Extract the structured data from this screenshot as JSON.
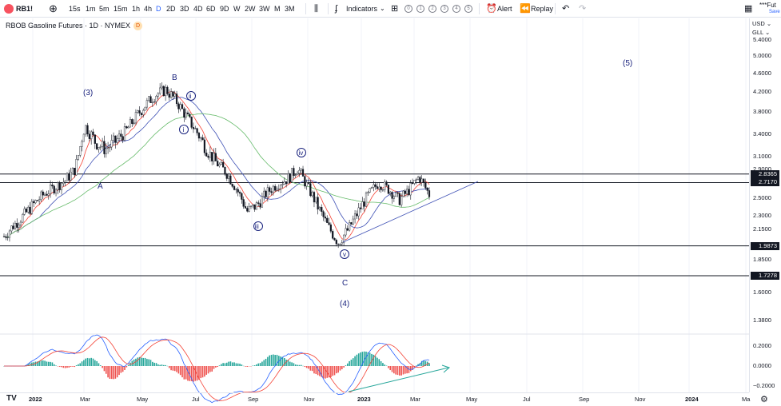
{
  "toolbar": {
    "symbol": "RB1!",
    "intervals": [
      "15s",
      "1m",
      "5m",
      "15m",
      "1h",
      "4h",
      "D",
      "2D",
      "3D",
      "4D",
      "6D",
      "9D",
      "W",
      "2W",
      "3W",
      "M",
      "3M"
    ],
    "selected_interval": "D",
    "indicators_label": "Indicators",
    "layout_nums": [
      "0",
      "1",
      "2",
      "3",
      "4",
      "5"
    ],
    "alert_label": "Alert",
    "replay_label": "Replay",
    "right_title": "***Fut",
    "saved_label": "Save"
  },
  "legend": {
    "title": "RBOB Gasoline Futures · 1D · NYMEX",
    "badge": "D"
  },
  "price_axis": {
    "currency": "USD",
    "unit": "GLL",
    "ticks": [
      "5.4000",
      "5.0000",
      "4.6000",
      "4.2000",
      "3.8000",
      "3.4000",
      "3.1000",
      "2.9000",
      "2.5000",
      "2.3000",
      "2.1500",
      "1.8500",
      "1.6000",
      "1.3800"
    ],
    "levels": [
      {
        "value": "2.8365"
      },
      {
        "value": "2.7170"
      },
      {
        "value": "1.9873"
      },
      {
        "value": "1.7278"
      }
    ],
    "osc_ticks": [
      "0.2000",
      "0.0000",
      "−0.2000"
    ]
  },
  "time_axis": {
    "ticks": [
      {
        "label": "2022",
        "bold": true
      },
      {
        "label": "Mar",
        "bold": false
      },
      {
        "label": "May",
        "bold": false
      },
      {
        "label": "Jul",
        "bold": false
      },
      {
        "label": "Sep",
        "bold": false
      },
      {
        "label": "Nov",
        "bold": false
      },
      {
        "label": "2023",
        "bold": true
      },
      {
        "label": "Mar",
        "bold": false
      },
      {
        "label": "May",
        "bold": false
      },
      {
        "label": "Jul",
        "bold": false
      },
      {
        "label": "Sep",
        "bold": false
      },
      {
        "label": "Nov",
        "bold": false
      },
      {
        "label": "2024",
        "bold": true
      },
      {
        "label": "Ma",
        "bold": false
      }
    ]
  },
  "wave_labels": {
    "w3": "(3)",
    "wB": "B",
    "wA": "A",
    "wC": "C",
    "w4": "(4)",
    "w5": "(5)",
    "wi": "i",
    "wii": "ii",
    "wiii": "iii",
    "wiv": "iv",
    "wv": "v"
  },
  "colors": {
    "candle": "#131722",
    "ma_fast": "#f44336",
    "ma_mid": "#3f51b5",
    "ma_slow": "#66bb6a",
    "trendline": "#3f51b5",
    "macd_line": "#2962ff",
    "signal_line": "#f44336",
    "hist_pos": "#26a69a",
    "hist_neg": "#ef5350",
    "divergence_arrow": "#26a69a",
    "wave_label": "#1a237e"
  },
  "chart_data": {
    "type": "candlestick",
    "title": "RBOB Gasoline Futures · 1D · NYMEX",
    "ylim": [
      1.3,
      5.6
    ],
    "closes": [
      2.08,
      2.2,
      2.31,
      2.44,
      2.56,
      2.65,
      2.74,
      2.9,
      3.55,
      3.3,
      3.2,
      3.3,
      3.45,
      3.7,
      3.95,
      4.15,
      4.25,
      4.02,
      3.72,
      3.45,
      3.2,
      3.0,
      2.85,
      2.62,
      2.35,
      2.42,
      2.58,
      2.7,
      2.77,
      2.92,
      2.65,
      2.4,
      2.18,
      2.02,
      2.15,
      2.35,
      2.55,
      2.72,
      2.62,
      2.48,
      2.61,
      2.8,
      2.55
    ],
    "horizontal_levels": [
      2.8365,
      2.717,
      1.9873,
      1.7278
    ]
  }
}
